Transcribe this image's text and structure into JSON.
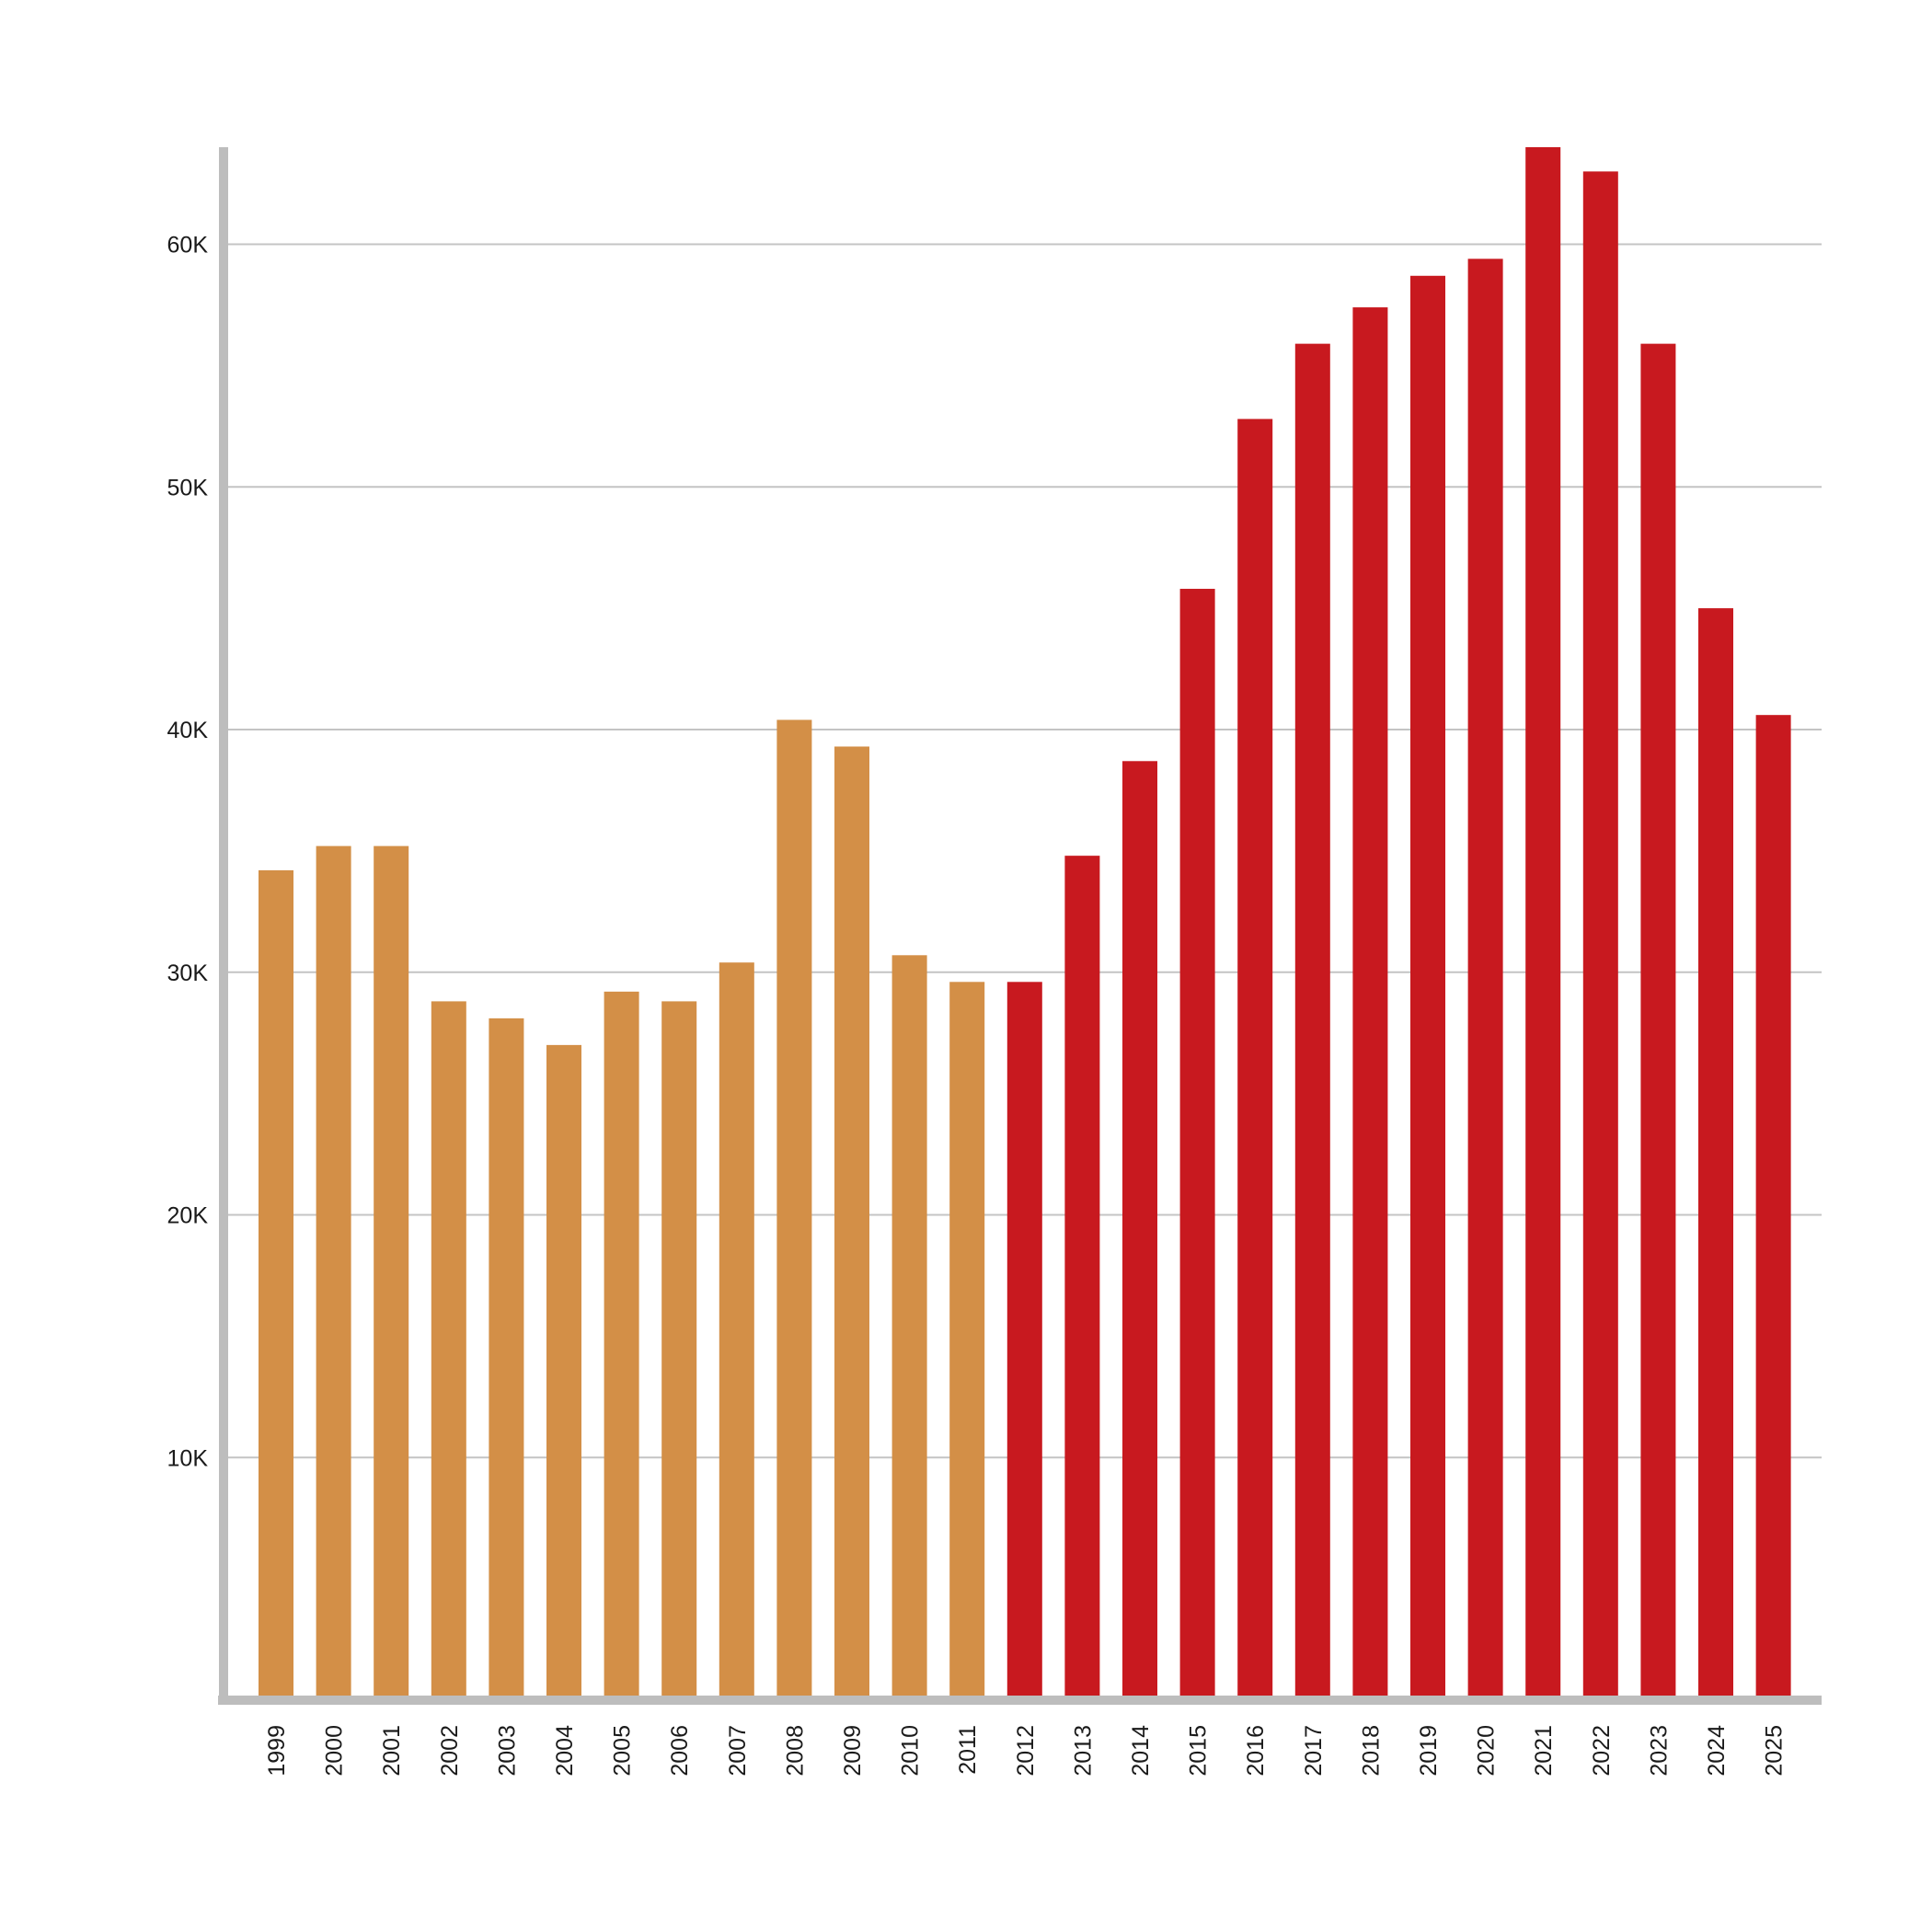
{
  "chart_data": {
    "type": "bar",
    "title": "",
    "xlabel": "",
    "ylabel": "",
    "ylim": [
      0,
      64000
    ],
    "grid": true,
    "yticks": [
      {
        "value": 10000,
        "label": "10K"
      },
      {
        "value": 20000,
        "label": "20K"
      },
      {
        "value": 30000,
        "label": "30K"
      },
      {
        "value": 40000,
        "label": "40K"
      },
      {
        "value": 50000,
        "label": "50K"
      },
      {
        "value": 60000,
        "label": "60K"
      }
    ],
    "categories": [
      "1999",
      "2000",
      "2001",
      "2002",
      "2003",
      "2004",
      "2005",
      "2006",
      "2007",
      "2008",
      "2009",
      "2010",
      "2011",
      "2012",
      "2013",
      "2014",
      "2015",
      "2016",
      "2017",
      "2018",
      "2019",
      "2020",
      "2021",
      "2022",
      "2023",
      "2024",
      "2025"
    ],
    "values": [
      34200,
      35200,
      35200,
      28800,
      28100,
      27000,
      29200,
      28800,
      30400,
      40400,
      39300,
      30700,
      29600,
      29600,
      34800,
      38700,
      45800,
      52800,
      55900,
      57400,
      58700,
      59400,
      64000,
      63000,
      55900,
      45000,
      40600
    ],
    "colors": {
      "earlier_period": "#D38F47",
      "later_period": "#C8191F",
      "axis": "#BDBDBD",
      "grid": "#C4C4C4"
    },
    "color_change_category": "2012"
  }
}
